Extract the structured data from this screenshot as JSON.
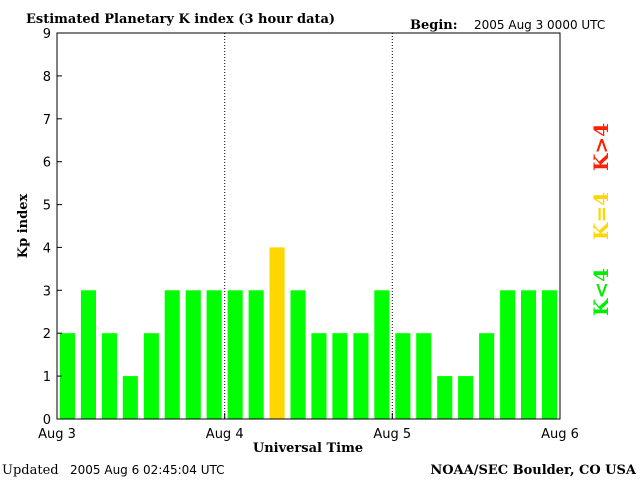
{
  "header": {
    "title": "Estimated Planetary K index (3 hour data)",
    "begin_label": "Begin:",
    "begin_value": "2005 Aug 3 0000 UTC"
  },
  "footer": {
    "updated_label": "Updated",
    "updated_value": "2005 Aug  6 02:45:04 UTC",
    "source": "NOAA/SEC Boulder, CO USA"
  },
  "legend": {
    "above": "K>4",
    "equal": "K=4",
    "below": "K<4"
  },
  "colors": {
    "below": "#00ff00",
    "equal": "#ffd700",
    "above": "#ff2000",
    "axis": "#000000",
    "background": "#ffffff"
  },
  "chart_data": {
    "type": "bar",
    "title": "Estimated Planetary K index (3 hour data)",
    "xlabel": "Universal Time",
    "ylabel": "Kp index",
    "ylim": [
      0,
      9
    ],
    "yticks": [
      "0",
      "1",
      "2",
      "3",
      "4",
      "5",
      "6",
      "7",
      "8",
      "9"
    ],
    "xticks": [
      "Aug 3",
      "Aug 4",
      "Aug 5",
      "Aug 6"
    ],
    "day_separators": [
      "Aug 4",
      "Aug 5"
    ],
    "interval_hours": 3,
    "values": [
      2,
      3,
      2,
      1,
      2,
      3,
      3,
      3,
      3,
      3,
      4,
      3,
      2,
      2,
      2,
      3,
      2,
      2,
      1,
      1,
      2,
      3,
      3,
      3
    ],
    "grid": false
  }
}
